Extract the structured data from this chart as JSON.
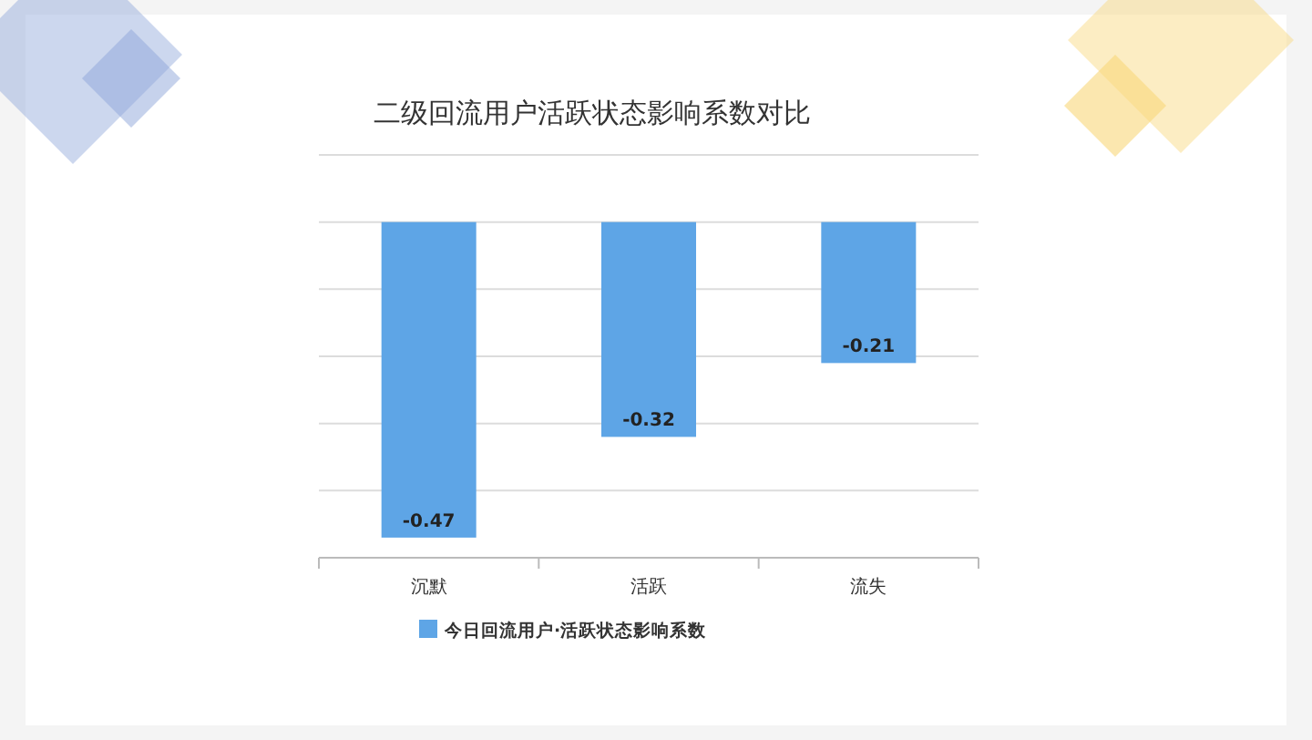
{
  "chart_data": {
    "type": "bar",
    "title": "二级回流用户活跃状态影响系数对比",
    "categories": [
      "沉默",
      "活跃",
      "流失"
    ],
    "series": [
      {
        "name": "今日回流用户·活跃状态影响系数",
        "color": "#5ea5e6",
        "values": [
          -0.47,
          -0.32,
          -0.21
        ]
      }
    ],
    "ylim": [
      -0.5,
      0.1
    ],
    "yticks": [
      {
        "value": -0.5,
        "label": null
      },
      {
        "value": -0.4,
        "label": null
      },
      {
        "value": -0.3,
        "label": null
      },
      {
        "value": -0.2,
        "label": null
      },
      {
        "value": -0.1,
        "label": null
      },
      {
        "value": 0,
        "label": null
      },
      {
        "value": 0.1,
        "label": null
      }
    ],
    "grid": "y",
    "legend": "bottom",
    "data_labels": true,
    "tick_labels": "x"
  }
}
